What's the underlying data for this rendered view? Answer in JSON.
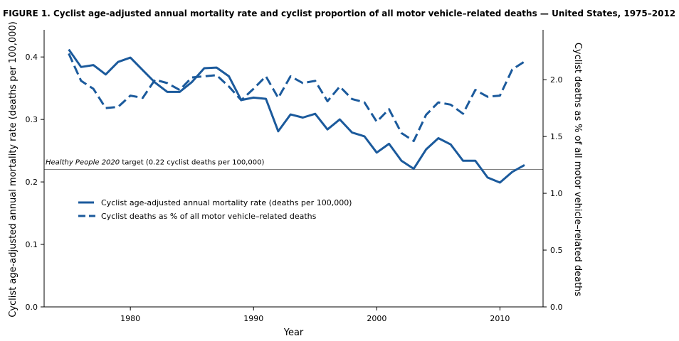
{
  "figure": {
    "title": "FIGURE 1. Cyclist age-adjusted annual mortality rate and cyclist proportion of all motor vehicle–related deaths — United States, 1975–2012"
  },
  "colors": {
    "series": "#1b5a9c",
    "axis": "#000000",
    "reference_line": "#555555"
  },
  "reference_line": {
    "italic_part": "Healthy People 2020",
    "label_rest": " target (0.22 cyclist deaths per 100,000)",
    "value": 0.22
  },
  "chart_data": {
    "type": "line",
    "title": "FIGURE 1. Cyclist age-adjusted annual mortality rate and cyclist proportion of all motor vehicle–related deaths — United States, 1975–2012",
    "xlabel": "Year",
    "ylabel_left": "Cyclist age-adjusted annual mortality rate (deaths per 100,000)",
    "ylabel_right": "Cyclist deaths as % of all motor vehicle–related deaths",
    "xlim": [
      1973,
      2013.5
    ],
    "ylim_left": [
      0,
      0.44
    ],
    "ylim_right": [
      0,
      2.42
    ],
    "x_ticks": [
      1980,
      1990,
      2000,
      2010
    ],
    "x_tick_labels": [
      "1980",
      "1990",
      "2000",
      "2010"
    ],
    "y_left_ticks": [
      0,
      0.1,
      0.2,
      0.3,
      0.4
    ],
    "y_left_tick_labels": [
      "0.0",
      "0.1",
      "0.2",
      "0.3",
      "0.4"
    ],
    "y_right_ticks": [
      0,
      0.5,
      1.0,
      1.5,
      2.0
    ],
    "y_right_tick_labels": [
      "0.0",
      "0.5",
      "1.0",
      "1.5",
      "2.0"
    ],
    "grid": false,
    "legend_position": "center-left",
    "x": [
      1975,
      1976,
      1977,
      1978,
      1979,
      1980,
      1981,
      1982,
      1983,
      1984,
      1985,
      1986,
      1987,
      1988,
      1989,
      1990,
      1991,
      1992,
      1993,
      1994,
      1995,
      1996,
      1997,
      1998,
      1999,
      2000,
      2001,
      2002,
      2003,
      2004,
      2005,
      2006,
      2007,
      2008,
      2009,
      2010,
      2011,
      2012
    ],
    "series": [
      {
        "name": "Cyclist age-adjusted annual mortality rate (deaths per 100,000)",
        "axis": "left",
        "style": "solid",
        "values": [
          0.412,
          0.384,
          0.387,
          0.372,
          0.392,
          0.399,
          0.379,
          0.359,
          0.344,
          0.344,
          0.36,
          0.382,
          0.383,
          0.369,
          0.331,
          0.335,
          0.333,
          0.281,
          0.308,
          0.303,
          0.309,
          0.284,
          0.3,
          0.279,
          0.273,
          0.247,
          0.261,
          0.234,
          0.221,
          0.252,
          0.27,
          0.26,
          0.234,
          0.234,
          0.207,
          0.199,
          0.216,
          0.227
        ]
      },
      {
        "name": "Cyclist deaths as % of all motor vehicle–related deaths",
        "axis": "right",
        "style": "dashed",
        "values": [
          2.23,
          1.99,
          1.92,
          1.75,
          1.76,
          1.86,
          1.84,
          2.0,
          1.97,
          1.91,
          2.02,
          2.03,
          2.04,
          1.94,
          1.82,
          1.92,
          2.03,
          1.84,
          2.03,
          1.97,
          1.99,
          1.81,
          1.94,
          1.83,
          1.8,
          1.63,
          1.74,
          1.53,
          1.46,
          1.69,
          1.8,
          1.78,
          1.7,
          1.91,
          1.85,
          1.86,
          2.09,
          2.16
        ]
      }
    ]
  }
}
